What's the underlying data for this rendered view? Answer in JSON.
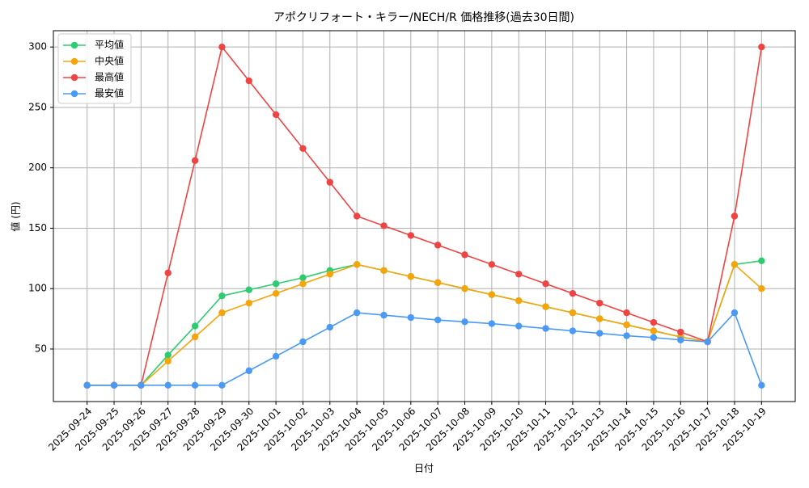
{
  "chart_data": {
    "type": "line",
    "title": "アポクリフォート・キラー/NECH/R 価格推移(過去30日間)",
    "x_label": "日付",
    "y_label": "値 (円)",
    "categories": [
      "2025-09-24",
      "2025-09-25",
      "2025-09-26",
      "2025-09-27",
      "2025-09-28",
      "2025-09-29",
      "2025-09-30",
      "2025-10-01",
      "2025-10-02",
      "2025-10-03",
      "2025-10-04",
      "2025-10-05",
      "2025-10-06",
      "2025-10-07",
      "2025-10-08",
      "2025-10-09",
      "2025-10-10",
      "2025-10-11",
      "2025-10-12",
      "2025-10-13",
      "2025-10-14",
      "2025-10-15",
      "2025-10-16",
      "2025-10-17",
      "2025-10-18",
      "2025-10-19"
    ],
    "series": [
      {
        "name": "平均値",
        "color": "#2ecc71",
        "values": [
          20,
          20,
          20,
          45,
          69,
          94,
          99,
          104,
          109,
          115,
          120,
          115,
          110,
          105,
          100,
          95,
          90,
          85,
          80,
          75,
          70,
          65,
          60,
          56,
          120,
          123
        ]
      },
      {
        "name": "中央値",
        "color": "#f5a50a",
        "values": [
          20,
          20,
          20,
          40,
          60,
          80,
          88,
          96,
          104,
          112,
          120,
          115,
          110,
          105,
          100,
          95,
          90,
          85,
          80,
          75,
          70,
          65,
          60,
          56,
          120,
          100
        ]
      },
      {
        "name": "最高値",
        "color": "#ef4444",
        "values": [
          20,
          20,
          20,
          113,
          206,
          300,
          272,
          244,
          216,
          188,
          160,
          152,
          144,
          136,
          128,
          120,
          112,
          104,
          96,
          88,
          80,
          72,
          64,
          56,
          160,
          300
        ]
      },
      {
        "name": "最安値",
        "color": "#4a9af5",
        "values": [
          20,
          20,
          20,
          20,
          20,
          20,
          32,
          44,
          56,
          68,
          80,
          78,
          76,
          74,
          72.5,
          71,
          69,
          67,
          65,
          63,
          61,
          59.5,
          57.5,
          56,
          80,
          20
        ]
      }
    ],
    "ylim": [
      6.5,
      313.5
    ],
    "yticks": [
      50,
      100,
      150,
      200,
      250,
      300
    ],
    "grid": true,
    "legend": "upper left"
  }
}
